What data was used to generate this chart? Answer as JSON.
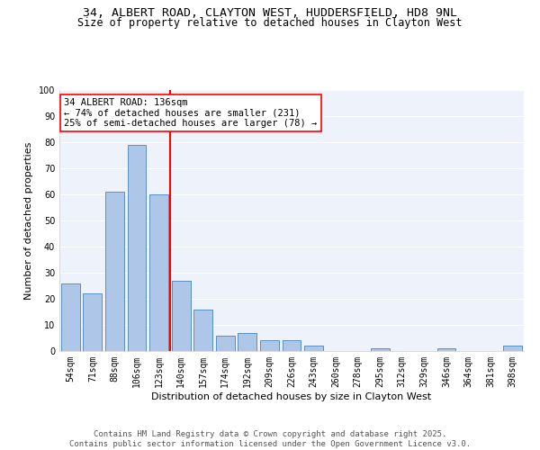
{
  "title_line1": "34, ALBERT ROAD, CLAYTON WEST, HUDDERSFIELD, HD8 9NL",
  "title_line2": "Size of property relative to detached houses in Clayton West",
  "xlabel": "Distribution of detached houses by size in Clayton West",
  "ylabel": "Number of detached properties",
  "categories": [
    "54sqm",
    "71sqm",
    "88sqm",
    "106sqm",
    "123sqm",
    "140sqm",
    "157sqm",
    "174sqm",
    "192sqm",
    "209sqm",
    "226sqm",
    "243sqm",
    "260sqm",
    "278sqm",
    "295sqm",
    "312sqm",
    "329sqm",
    "346sqm",
    "364sqm",
    "381sqm",
    "398sqm"
  ],
  "values": [
    26,
    22,
    61,
    79,
    60,
    27,
    16,
    6,
    7,
    4,
    4,
    2,
    0,
    0,
    1,
    0,
    0,
    1,
    0,
    0,
    2
  ],
  "bar_color": "#aec6e8",
  "bar_edge_color": "#5a8fc2",
  "vline_color": "red",
  "annotation_text": "34 ALBERT ROAD: 136sqm\n← 74% of detached houses are smaller (231)\n25% of semi-detached houses are larger (78) →",
  "annotation_box_color": "white",
  "annotation_box_edge": "red",
  "ylim": [
    0,
    100
  ],
  "yticks": [
    0,
    10,
    20,
    30,
    40,
    50,
    60,
    70,
    80,
    90,
    100
  ],
  "bg_color": "#eef2fb",
  "grid_color": "white",
  "footer_text": "Contains HM Land Registry data © Crown copyright and database right 2025.\nContains public sector information licensed under the Open Government Licence v3.0.",
  "title_fontsize": 9.5,
  "subtitle_fontsize": 8.5,
  "axis_label_fontsize": 8,
  "tick_fontsize": 7,
  "annotation_fontsize": 7.5,
  "footer_fontsize": 6.5
}
